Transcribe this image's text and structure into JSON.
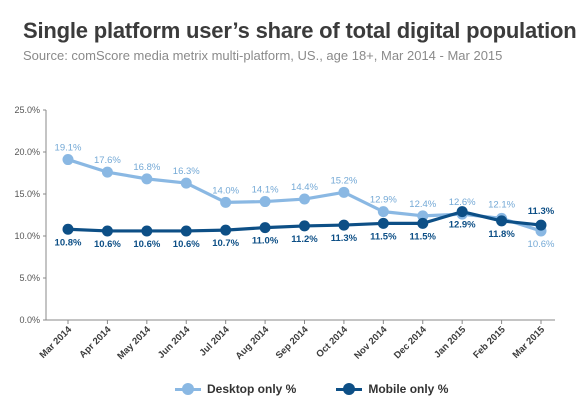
{
  "title": "Single platform user’s share of total digital population",
  "subtitle": "Source: comScore media metrix multi-platform, US., age 18+, Mar 2014 - Mar 2015",
  "colors": {
    "desktop": "#8ab8e3",
    "mobile": "#0d4f86",
    "axis": "#888888"
  },
  "chart_data": {
    "type": "line",
    "title": "Single platform user’s share of total digital population",
    "subtitle": "Source: comScore media metrix multi-platform, US., age 18+, Mar 2014 - Mar 2015",
    "categories": [
      "Mar 2014",
      "Apr 2014",
      "May 2014",
      "Jun 2014",
      "Jul 2014",
      "Aug 2014",
      "Sep 2014",
      "Oct 2014",
      "Nov 2014",
      "Dec 2014",
      "Jan 2015",
      "Feb 2015",
      "Mar 2015"
    ],
    "ylim": [
      0,
      25
    ],
    "yticks": [
      "0.0%",
      "5.0%",
      "10.0%",
      "15.0%",
      "20.0%",
      "25.0%"
    ],
    "grid": false,
    "legend_position": "bottom",
    "series": [
      {
        "name": "Desktop only %",
        "values": [
          19.1,
          17.6,
          16.8,
          16.3,
          14.0,
          14.1,
          14.4,
          15.2,
          12.9,
          12.4,
          12.6,
          12.1,
          10.6
        ],
        "labels": [
          "19.1%",
          "17.6%",
          "16.8%",
          "16.3%",
          "14.0%",
          "14.1%",
          "14.4%",
          "15.2%",
          "12.9%",
          "12.4%",
          "12.6%",
          "12.1%",
          "10.6%"
        ]
      },
      {
        "name": "Mobile only %",
        "values": [
          10.8,
          10.6,
          10.6,
          10.6,
          10.7,
          11.0,
          11.2,
          11.3,
          11.5,
          11.5,
          12.9,
          11.8,
          11.3
        ],
        "labels": [
          "10.8%",
          "10.6%",
          "10.6%",
          "10.6%",
          "10.7%",
          "11.0%",
          "11.2%",
          "11.3%",
          "11.5%",
          "11.5%",
          "12.9%",
          "11.8%",
          "11.3%"
        ]
      }
    ]
  }
}
